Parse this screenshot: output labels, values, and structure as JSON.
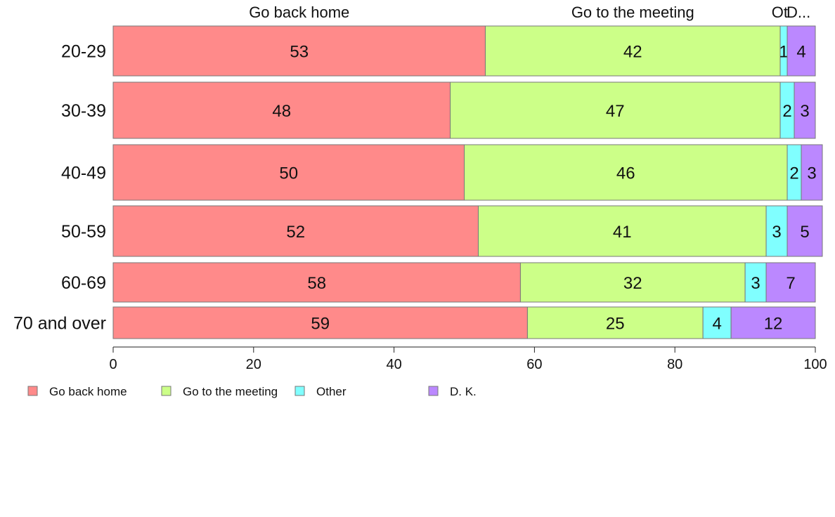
{
  "chart_data": {
    "type": "bar",
    "orientation": "horizontal",
    "stacked": true,
    "categories": [
      "20-29",
      "30-39",
      "40-49",
      "50-59",
      "60-69",
      "70 and over"
    ],
    "series": [
      {
        "name": "Go back home",
        "color": "#ff8a8a",
        "values": [
          53,
          48,
          50,
          52,
          58,
          59
        ]
      },
      {
        "name": "Go to the meeting",
        "color": "#ccff88",
        "values": [
          42,
          47,
          46,
          41,
          32,
          25
        ]
      },
      {
        "name": "Other",
        "color": "#80ffff",
        "values": [
          1,
          2,
          2,
          3,
          3,
          4
        ]
      },
      {
        "name": "D. K.",
        "color": "#bb88ff",
        "values": [
          4,
          3,
          3,
          5,
          7,
          12
        ]
      }
    ],
    "column_headers": [
      "Go back home",
      "Go to the meeting",
      "Ot",
      "D..."
    ],
    "xlim": [
      0,
      100
    ],
    "xticks": [
      0,
      20,
      40,
      60,
      80,
      100
    ],
    "grid": false,
    "legend_position": "bottom-left"
  }
}
